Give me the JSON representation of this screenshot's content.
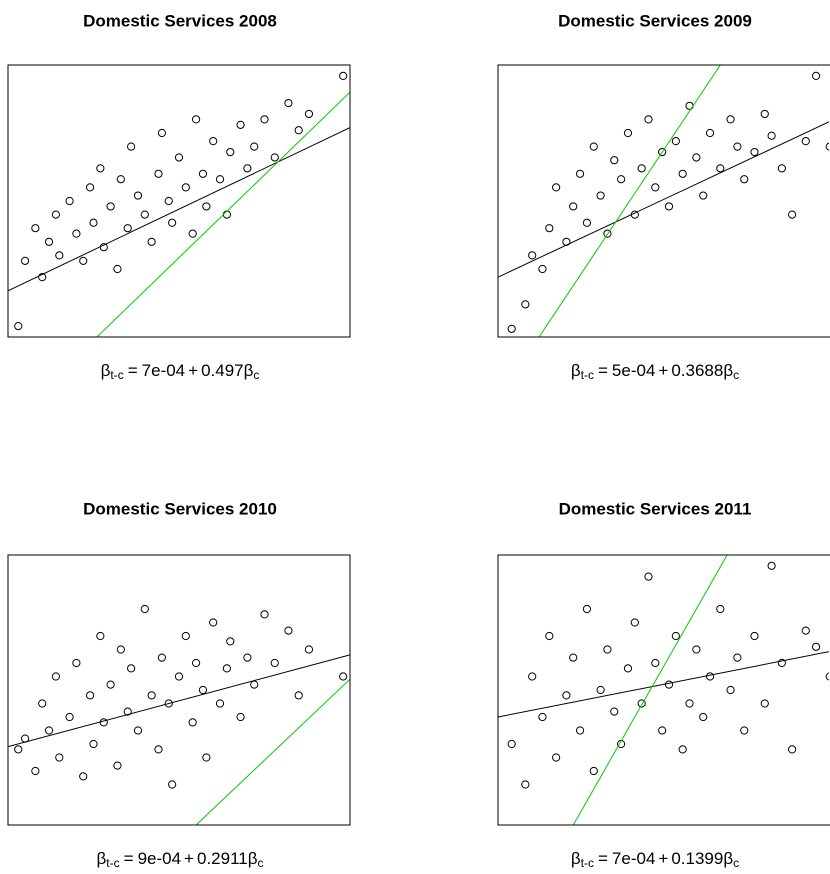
{
  "chart_data": [
    {
      "type": "scatter",
      "title": "Domestic Services 2008",
      "xlim": [
        0,
        100
      ],
      "ylim": [
        0,
        100
      ],
      "x": [
        3,
        5,
        8,
        10,
        12,
        14,
        15,
        18,
        20,
        22,
        24,
        25,
        27,
        28,
        30,
        32,
        33,
        35,
        36,
        38,
        40,
        42,
        44,
        45,
        47,
        48,
        50,
        52,
        54,
        55,
        57,
        58,
        60,
        62,
        64,
        65,
        68,
        70,
        72,
        75,
        78,
        82,
        85,
        88,
        98
      ],
      "y": [
        4,
        28,
        40,
        22,
        35,
        45,
        30,
        50,
        38,
        28,
        55,
        42,
        62,
        33,
        48,
        25,
        58,
        40,
        70,
        52,
        45,
        35,
        60,
        75,
        50,
        42,
        66,
        55,
        38,
        80,
        60,
        48,
        72,
        58,
        45,
        68,
        78,
        62,
        70,
        80,
        66,
        86,
        76,
        82,
        96
      ],
      "lines": [
        {
          "color": "#000000",
          "x": [
            0,
            100
          ],
          "y": [
            17,
            77
          ]
        },
        {
          "color": "#00cc00",
          "x": [
            26,
            100
          ],
          "y": [
            0,
            90
          ]
        }
      ],
      "formula": {
        "response": "β",
        "response_sub": "t-c",
        "equals": "=",
        "intercept": {
          "value": 0.0007,
          "label": "7e-04"
        },
        "plus": "+",
        "slope": 0.497,
        "predictor": "β",
        "predictor_sub": "c"
      }
    },
    {
      "type": "scatter",
      "title": "Domestic Services 2009",
      "xlim": [
        0,
        100
      ],
      "ylim": [
        0,
        100
      ],
      "x": [
        4,
        8,
        10,
        13,
        15,
        17,
        20,
        22,
        24,
        26,
        28,
        30,
        32,
        34,
        36,
        38,
        40,
        42,
        44,
        46,
        48,
        50,
        52,
        54,
        56,
        58,
        60,
        62,
        65,
        68,
        70,
        72,
        75,
        78,
        80,
        83,
        86,
        90,
        93,
        97
      ],
      "y": [
        3,
        12,
        30,
        25,
        40,
        55,
        35,
        48,
        60,
        42,
        70,
        52,
        38,
        65,
        58,
        75,
        45,
        62,
        80,
        55,
        68,
        48,
        72,
        60,
        85,
        66,
        52,
        75,
        62,
        80,
        70,
        58,
        68,
        82,
        74,
        62,
        45,
        72,
        96,
        70
      ],
      "lines": [
        {
          "color": "#000000",
          "x": [
            0,
            100
          ],
          "y": [
            22,
            81
          ]
        },
        {
          "color": "#00cc00",
          "x": [
            12,
            65
          ],
          "y": [
            0,
            100
          ]
        }
      ],
      "formula": {
        "response": "β",
        "response_sub": "t-c",
        "equals": "=",
        "intercept": {
          "value": 0.0005,
          "label": "5e-04"
        },
        "plus": "+",
        "slope": 0.3688,
        "predictor": "β",
        "predictor_sub": "c"
      }
    },
    {
      "type": "scatter",
      "title": "Domestic Services 2010",
      "xlim": [
        0,
        100
      ],
      "ylim": [
        0,
        100
      ],
      "x": [
        3,
        5,
        8,
        10,
        12,
        14,
        15,
        18,
        20,
        22,
        24,
        25,
        27,
        28,
        30,
        32,
        33,
        35,
        36,
        38,
        40,
        42,
        44,
        45,
        47,
        48,
        50,
        52,
        54,
        55,
        57,
        58,
        60,
        62,
        64,
        65,
        68,
        70,
        72,
        75,
        78,
        82,
        85,
        88,
        98
      ],
      "y": [
        28,
        32,
        20,
        45,
        35,
        55,
        25,
        40,
        60,
        18,
        48,
        30,
        70,
        38,
        52,
        22,
        65,
        42,
        58,
        35,
        80,
        48,
        28,
        62,
        45,
        15,
        55,
        70,
        38,
        60,
        50,
        25,
        75,
        45,
        58,
        68,
        40,
        62,
        52,
        78,
        60,
        72,
        48,
        65,
        55
      ],
      "lines": [
        {
          "color": "#000000",
          "x": [
            0,
            100
          ],
          "y": [
            29,
            63
          ]
        },
        {
          "color": "#00cc00",
          "x": [
            55,
            100
          ],
          "y": [
            0,
            54
          ]
        }
      ],
      "formula": {
        "response": "β",
        "response_sub": "t-c",
        "equals": "=",
        "intercept": {
          "value": 0.0009,
          "label": "9e-04"
        },
        "plus": "+",
        "slope": 0.2911,
        "predictor": "β",
        "predictor_sub": "c"
      }
    },
    {
      "type": "scatter",
      "title": "Domestic Services 2011",
      "xlim": [
        0,
        100
      ],
      "ylim": [
        0,
        100
      ],
      "x": [
        4,
        8,
        10,
        13,
        15,
        17,
        20,
        22,
        24,
        26,
        28,
        30,
        32,
        34,
        36,
        38,
        40,
        42,
        44,
        46,
        48,
        50,
        52,
        54,
        56,
        58,
        60,
        62,
        65,
        68,
        70,
        72,
        75,
        78,
        80,
        83,
        86,
        90,
        93,
        97
      ],
      "y": [
        30,
        15,
        55,
        40,
        70,
        25,
        48,
        62,
        35,
        80,
        20,
        50,
        65,
        42,
        30,
        58,
        75,
        45,
        92,
        60,
        35,
        52,
        70,
        28,
        45,
        65,
        40,
        55,
        80,
        50,
        62,
        35,
        70,
        45,
        96,
        60,
        28,
        72,
        66,
        55
      ],
      "lines": [
        {
          "color": "#000000",
          "x": [
            0,
            100
          ],
          "y": [
            40,
            65
          ]
        },
        {
          "color": "#00cc00",
          "x": [
            22,
            67
          ],
          "y": [
            0,
            100
          ]
        }
      ],
      "formula": {
        "response": "β",
        "response_sub": "t-c",
        "equals": "=",
        "intercept": {
          "value": 0.0007,
          "label": "7e-04"
        },
        "plus": "+",
        "slope": 0.1399,
        "predictor": "β",
        "predictor_sub": "c"
      }
    }
  ]
}
